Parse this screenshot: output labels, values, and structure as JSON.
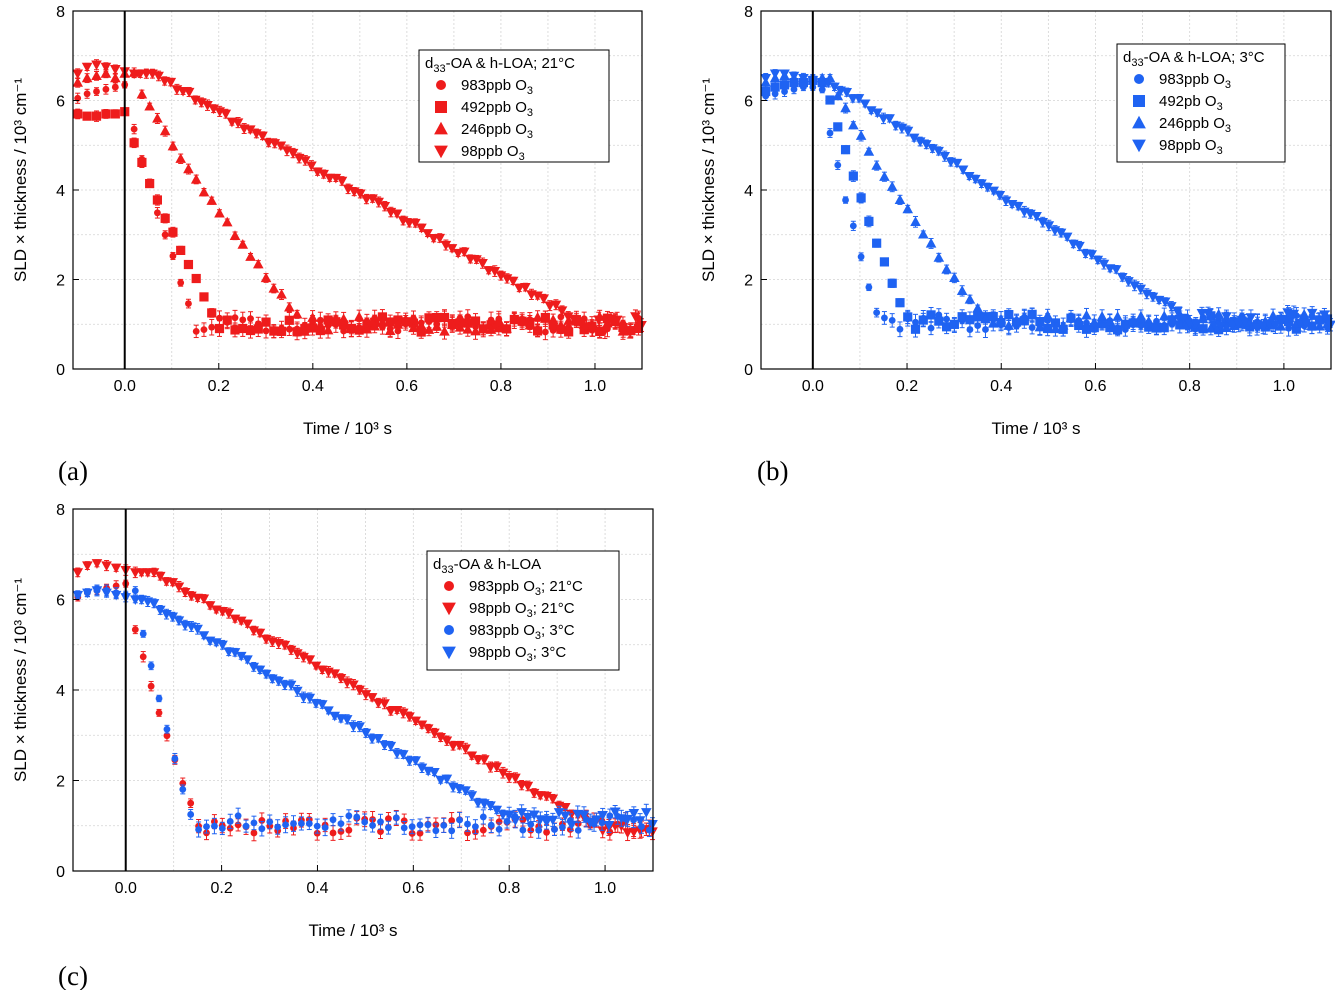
{
  "chart_data": [
    {
      "panel": "(a)",
      "type": "scatter",
      "error_bars": true,
      "xlabel": "Time / 10³ s",
      "ylabel": "SLD × thickness / 10³ cm⁻¹",
      "xlim": [
        -0.11,
        1.1
      ],
      "ylim": [
        0,
        8
      ],
      "xticks": [
        "0.0",
        "0.2",
        "0.4",
        "0.6",
        "0.8",
        "1.0"
      ],
      "yticks": [
        "0",
        "2",
        "4",
        "6",
        "8"
      ],
      "grid": true,
      "legend_position": "top-right",
      "legend_title": "d33-OA & h-LOA; 21°C",
      "series": [
        {
          "name": "983ppb O3",
          "marker": "circle",
          "color": "#ee1c1c",
          "t0": 0.0,
          "v0": 6.3,
          "drop_end": 0.15,
          "floor": 1.0,
          "pre": [
            6.05,
            6.15,
            6.2,
            6.25,
            6.3,
            6.35
          ]
        },
        {
          "name": "492ppb O3",
          "marker": "square",
          "color": "#ee1c1c",
          "t0": 0.0,
          "v0": 5.7,
          "drop_end": 0.2,
          "floor": 1.0,
          "pre": [
            5.7,
            5.65,
            5.65,
            5.7,
            5.7,
            5.75
          ]
        },
        {
          "name": "246ppb O3",
          "marker": "triangle-up",
          "color": "#ee1c1c",
          "t0": 0.02,
          "v0": 6.6,
          "drop_end": 0.38,
          "floor": 1.0,
          "pre": [
            6.4,
            6.5,
            6.55,
            6.6,
            6.5,
            6.6
          ]
        },
        {
          "name": "98ppb O3",
          "marker": "triangle-down",
          "color": "#ee1c1c",
          "t0": 0.06,
          "v0": 6.6,
          "drop_end": 0.98,
          "floor": 1.0,
          "pre": [
            6.6,
            6.75,
            6.8,
            6.75,
            6.7,
            6.65
          ]
        }
      ]
    },
    {
      "panel": "(b)",
      "type": "scatter",
      "error_bars": true,
      "xlabel": "Time / 10³ s",
      "ylabel": "SLD × thickness / 10³ cm⁻¹",
      "xlim": [
        -0.11,
        1.1
      ],
      "ylim": [
        0,
        8
      ],
      "xticks": [
        "0.0",
        "0.2",
        "0.4",
        "0.6",
        "0.8",
        "1.0"
      ],
      "yticks": [
        "0",
        "2",
        "4",
        "6",
        "8"
      ],
      "grid": true,
      "legend_position": "top-right",
      "legend_title": "d33-OA & h-LOA; 3°C",
      "series": [
        {
          "name": "983ppb O3",
          "marker": "circle",
          "color": "#1f63f2",
          "t0": 0.02,
          "v0": 6.3,
          "drop_end": 0.14,
          "floor": 1.05,
          "pre": [
            6.1,
            6.15,
            6.2,
            6.25,
            6.3,
            6.3
          ]
        },
        {
          "name": "492pb O3",
          "marker": "square",
          "color": "#1f63f2",
          "t0": 0.03,
          "v0": 6.4,
          "drop_end": 0.2,
          "floor": 1.05,
          "pre": [
            6.2,
            6.3,
            6.35,
            6.4,
            6.4,
            6.45
          ]
        },
        {
          "name": "246ppb O3",
          "marker": "triangle-up",
          "color": "#1f63f2",
          "t0": 0.04,
          "v0": 6.5,
          "drop_end": 0.37,
          "floor": 1.05,
          "pre": [
            6.4,
            6.5,
            6.55,
            6.5,
            6.45,
            6.5
          ]
        },
        {
          "name": "98ppb O3",
          "marker": "triangle-down",
          "color": "#1f63f2",
          "t0": 0.04,
          "v0": 6.4,
          "drop_end": 0.8,
          "floor": 1.1,
          "pre": [
            6.5,
            6.6,
            6.6,
            6.55,
            6.5,
            6.45
          ]
        }
      ]
    },
    {
      "panel": "(c)",
      "type": "scatter",
      "error_bars": true,
      "xlabel": "Time / 10³ s",
      "ylabel": "SLD × thickness / 10³ cm⁻¹",
      "xlim": [
        -0.11,
        1.1
      ],
      "ylim": [
        0,
        8
      ],
      "xticks": [
        "0.0",
        "0.2",
        "0.4",
        "0.6",
        "0.8",
        "1.0"
      ],
      "yticks": [
        "0",
        "2",
        "4",
        "6",
        "8"
      ],
      "grid": true,
      "legend_position": "top-right",
      "legend_title": "d33-OA & h-LOA",
      "series": [
        {
          "name": "983ppb O3; 21°C",
          "marker": "circle",
          "color": "#ee1c1c",
          "t0": 0.0,
          "v0": 6.3,
          "drop_end": 0.15,
          "floor": 1.0,
          "pre": [
            6.05,
            6.15,
            6.2,
            6.25,
            6.3,
            6.35
          ]
        },
        {
          "name": "98ppb O3; 21°C",
          "marker": "triangle-down",
          "color": "#ee1c1c",
          "t0": 0.06,
          "v0": 6.6,
          "drop_end": 0.98,
          "floor": 1.0,
          "pre": [
            6.6,
            6.75,
            6.8,
            6.75,
            6.7,
            6.65
          ]
        },
        {
          "name": "983ppb O3; 3°C",
          "marker": "circle",
          "color": "#1f63f2",
          "t0": 0.02,
          "v0": 6.2,
          "drop_end": 0.14,
          "floor": 1.05,
          "pre": [
            6.1,
            6.15,
            6.2,
            6.2,
            6.15,
            6.1
          ]
        },
        {
          "name": "98ppb O3; 3°C",
          "marker": "triangle-down",
          "color": "#1f63f2",
          "t0": 0.04,
          "v0": 6.0,
          "drop_end": 0.8,
          "floor": 1.15,
          "pre": [
            6.1,
            6.15,
            6.2,
            6.15,
            6.1,
            6.05
          ]
        }
      ]
    }
  ]
}
